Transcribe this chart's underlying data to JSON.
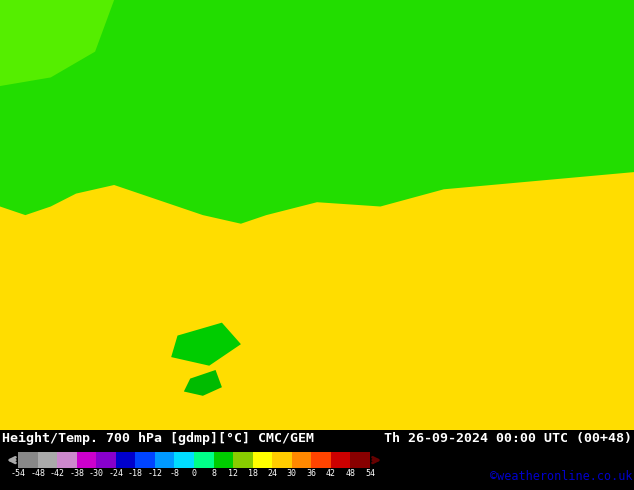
{
  "title_left": "Height/Temp. 700 hPa [gdmp][°C] CMC/GEM",
  "title_right": "Th 26-09-2024 00:00 UTC (00+48)",
  "credit": "©weatheronline.co.uk",
  "colorbar_colors": [
    "#888888",
    "#aaaaaa",
    "#cc88cc",
    "#cc00cc",
    "#8800cc",
    "#0000cc",
    "#0044ff",
    "#0099ff",
    "#00ddff",
    "#00ff88",
    "#00cc00",
    "#88cc00",
    "#ffff00",
    "#ffcc00",
    "#ff8800",
    "#ff4400",
    "#cc0000",
    "#880000"
  ],
  "colorbar_tick_labels": [
    "-54",
    "-48",
    "-42",
    "-38",
    "-30",
    "-24",
    "-18",
    "-12",
    "-8",
    "0",
    "8",
    "12",
    "18",
    "24",
    "30",
    "36",
    "42",
    "48",
    "54"
  ],
  "bg_color": "#ffff00",
  "map_green_top": "#00ee00",
  "map_yellow": "#ffdd00",
  "map_green_small": "#00bb00",
  "credit_color": "#0000cc",
  "bottom_bg": "#000000",
  "label_fontsize": 9.5,
  "credit_fontsize": 8.5,
  "tick_fontsize": 6.0
}
